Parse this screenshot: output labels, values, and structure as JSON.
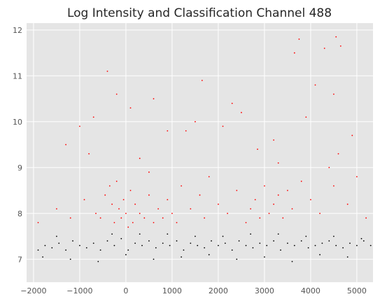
{
  "chart_data": {
    "type": "scatter",
    "title": "Log Intensity and Classification Channel 488",
    "xlabel": "",
    "ylabel": "",
    "xlim": [
      -2150,
      5350
    ],
    "ylim": [
      6.5,
      12.15
    ],
    "x_ticks": [
      -2000,
      -1000,
      0,
      1000,
      2000,
      3000,
      4000,
      5000
    ],
    "x_tick_labels": [
      "−2000",
      "−1000",
      "0",
      "1000",
      "2000",
      "3000",
      "4000",
      "5000"
    ],
    "y_ticks": [
      7,
      8,
      9,
      10,
      11,
      12
    ],
    "y_tick_labels": [
      "7",
      "8",
      "9",
      "10",
      "11",
      "12"
    ],
    "grid": true,
    "background": "#e5e5e5",
    "grid_color": "#ffffff",
    "series": [
      {
        "color": "#ff0000",
        "x": [
          -1900,
          -1500,
          -1200,
          -900,
          -650,
          -550,
          -450,
          -350,
          -300,
          -250,
          -200,
          -150,
          -100,
          -50,
          0,
          50,
          100,
          150,
          200,
          300,
          400,
          500,
          600,
          700,
          800,
          900,
          1000,
          1100,
          1200,
          1400,
          1600,
          1700,
          1800,
          2000,
          2200,
          2400,
          2600,
          2700,
          2800,
          2900,
          3000,
          3100,
          3200,
          3300,
          3400,
          3500,
          3600,
          3800,
          4000,
          4200,
          4400,
          4500,
          4600,
          4800,
          5000,
          5200,
          -1300,
          -700,
          -400,
          100,
          300,
          900,
          1500,
          2300,
          3200,
          3750,
          4300,
          4550,
          4650,
          3650,
          4500,
          1650,
          -1000,
          2500,
          2850,
          4100,
          4900,
          3300,
          600,
          -200,
          1300,
          2100,
          3900,
          -800,
          500
        ],
        "y": [
          7.8,
          8.1,
          7.9,
          8.3,
          8.0,
          7.9,
          8.4,
          8.6,
          8.2,
          7.8,
          8.7,
          8.1,
          7.9,
          8.3,
          8.0,
          7.7,
          8.5,
          7.8,
          8.2,
          8.0,
          7.9,
          8.4,
          7.8,
          8.1,
          7.9,
          8.3,
          8.0,
          7.8,
          8.6,
          8.1,
          8.4,
          7.9,
          8.8,
          8.2,
          8.0,
          8.5,
          7.8,
          8.1,
          8.3,
          7.9,
          8.6,
          8.0,
          8.2,
          8.4,
          7.9,
          8.5,
          8.1,
          8.7,
          8.3,
          8.0,
          9.0,
          8.6,
          9.3,
          8.2,
          8.8,
          7.9,
          9.5,
          10.1,
          11.1,
          10.3,
          9.2,
          9.8,
          10.0,
          10.4,
          9.6,
          11.8,
          11.6,
          11.85,
          11.65,
          11.5,
          10.6,
          10.9,
          9.9,
          10.2,
          9.4,
          10.8,
          9.7,
          9.1,
          10.5,
          10.6,
          9.8,
          9.9,
          10.1,
          9.3,
          8.9
        ]
      },
      {
        "color": "#000000",
        "x": [
          -1900,
          -1750,
          -1600,
          -1450,
          -1300,
          -1150,
          -1000,
          -850,
          -700,
          -550,
          -400,
          -250,
          -100,
          50,
          200,
          350,
          500,
          650,
          800,
          950,
          1100,
          1250,
          1400,
          1550,
          1700,
          1850,
          2000,
          2150,
          2300,
          2450,
          2600,
          2750,
          2900,
          3050,
          3200,
          3350,
          3500,
          3650,
          3800,
          3950,
          4100,
          4250,
          4400,
          4550,
          4700,
          4850,
          5000,
          5150,
          5300,
          -1800,
          -1200,
          -600,
          0,
          600,
          1200,
          1800,
          2400,
          3000,
          3600,
          4200,
          4800,
          -300,
          900,
          2100,
          3300,
          4500,
          -1500,
          300,
          1500,
          2700,
          3900,
          5100
        ],
        "y": [
          7.2,
          7.3,
          7.25,
          7.35,
          7.2,
          7.4,
          7.3,
          7.25,
          7.35,
          7.2,
          7.4,
          7.3,
          7.45,
          7.2,
          7.35,
          7.3,
          7.4,
          7.25,
          7.35,
          7.3,
          7.4,
          7.2,
          7.35,
          7.3,
          7.25,
          7.4,
          7.3,
          7.35,
          7.2,
          7.4,
          7.3,
          7.25,
          7.35,
          7.3,
          7.4,
          7.2,
          7.35,
          7.3,
          7.4,
          7.25,
          7.3,
          7.35,
          7.4,
          7.3,
          7.25,
          7.35,
          7.3,
          7.4,
          7.3,
          7.05,
          7.0,
          6.95,
          7.1,
          7.0,
          7.05,
          7.1,
          7.0,
          7.05,
          6.95,
          7.1,
          7.05,
          7.55,
          7.55,
          7.5,
          7.55,
          7.5,
          7.5,
          7.55,
          7.5,
          7.55,
          7.5,
          7.45
        ]
      }
    ]
  }
}
